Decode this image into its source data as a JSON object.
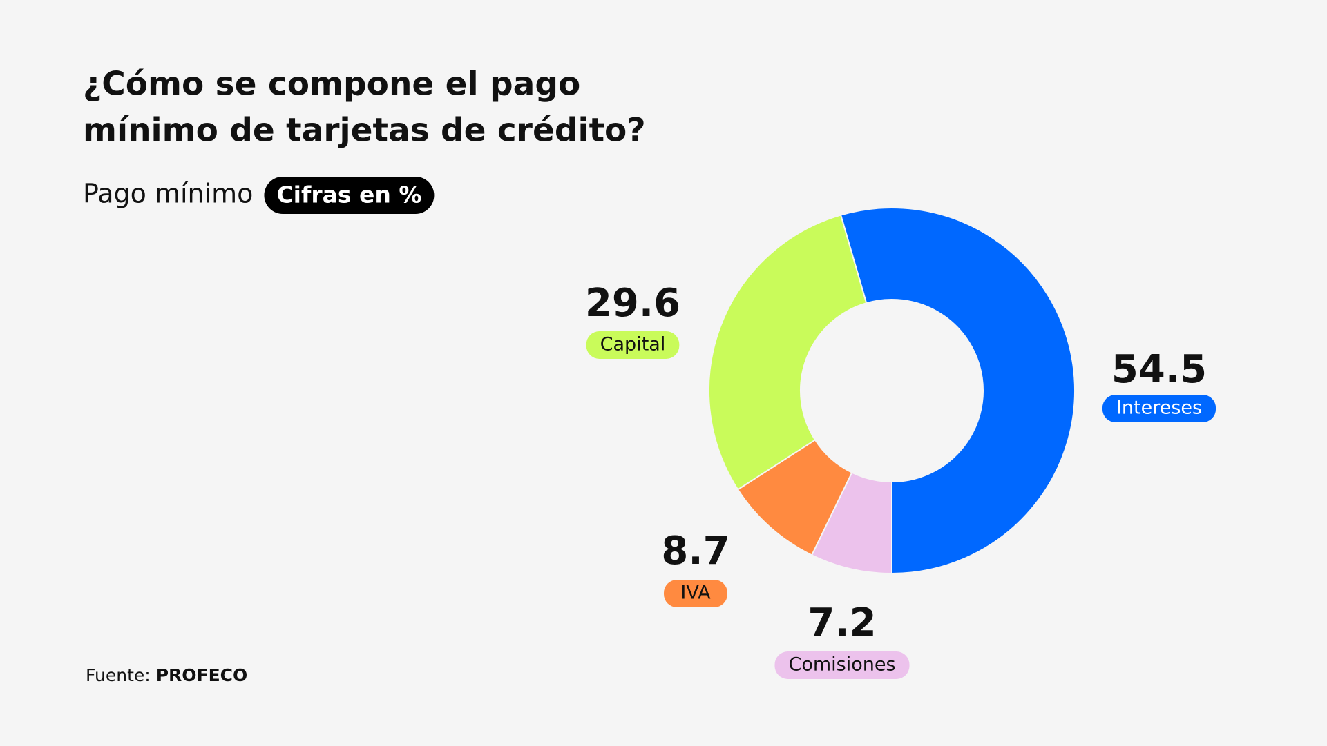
{
  "chart_data": {
    "type": "donut",
    "title": [
      "¿Cómo se compone el pago",
      "mínimo de tarjetas de crédito?"
    ],
    "subtitle": "Pago mínimo",
    "unit_badge": "Cifras en %",
    "source_label": "Fuente:",
    "source": "PROFECO",
    "categories": [
      "Intereses",
      "Comisiones",
      "IVA",
      "Capital"
    ],
    "values": [
      54.5,
      7.2,
      8.7,
      29.6
    ],
    "colors": [
      "#0068ff",
      "#ecc2ec",
      "#ff8a40",
      "#c9fb5a"
    ]
  }
}
